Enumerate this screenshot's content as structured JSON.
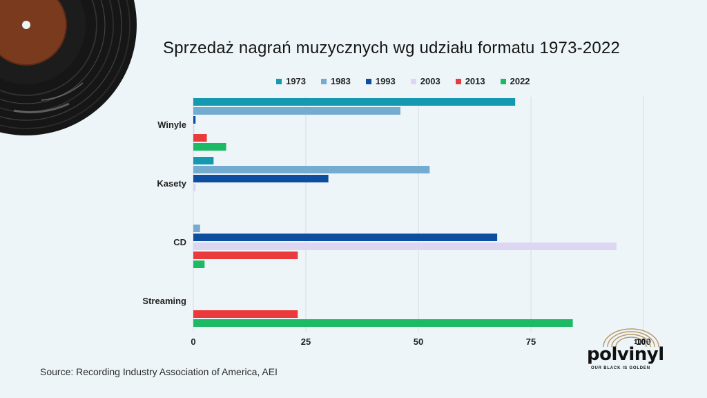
{
  "chart_data": {
    "type": "bar",
    "orientation": "horizontal",
    "title": "Sprzedaż nagrań muzycznych wg udziału formatu 1973-2022",
    "categories": [
      "Winyle",
      "Kasety",
      "CD",
      "Streaming"
    ],
    "series": [
      {
        "name": "1973",
        "color": "#1499b0",
        "values": [
          71.5,
          4.5,
          0,
          0
        ]
      },
      {
        "name": "1983",
        "color": "#74abd0",
        "values": [
          46,
          52.5,
          1.5,
          0
        ]
      },
      {
        "name": "1993",
        "color": "#0d4ea1",
        "values": [
          0.5,
          30,
          67.5,
          0
        ]
      },
      {
        "name": "2003",
        "color": "#dcd6f3",
        "values": [
          0.2,
          0.5,
          94,
          0
        ]
      },
      {
        "name": "2013",
        "color": "#ea3a3c",
        "values": [
          3,
          0,
          23.2,
          23.2
        ]
      },
      {
        "name": "2022",
        "color": "#1db964",
        "values": [
          7.3,
          0,
          2.5,
          84.3
        ]
      }
    ],
    "xlim": [
      0,
      100
    ],
    "xticks": [
      "0",
      "25",
      "50",
      "75",
      "100"
    ],
    "grid": true,
    "legend": "top"
  },
  "source": "Source: Recording Industry Association of America, AEI",
  "logo": {
    "wordmark": "polvinyl",
    "tagline": "OUR BLACK IS GOLDEN",
    "number": "100"
  }
}
